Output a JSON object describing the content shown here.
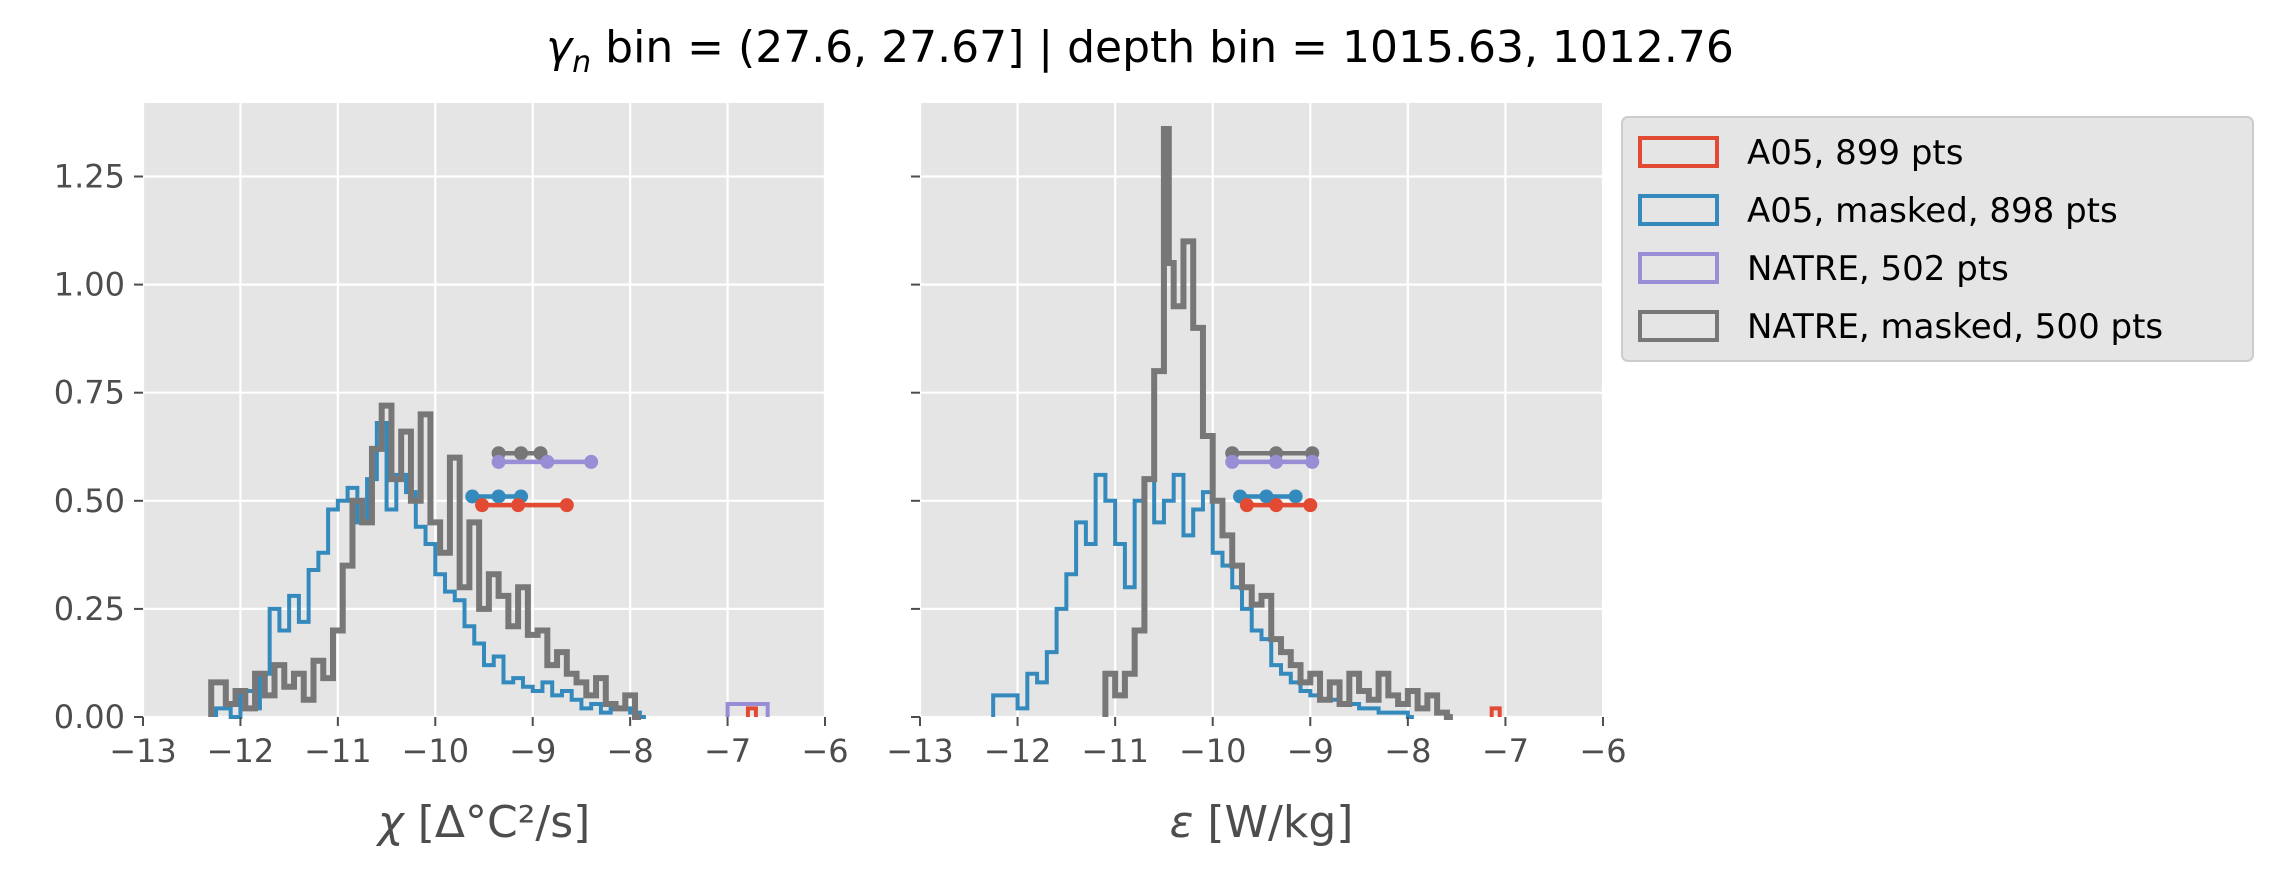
{
  "chart_data": {
    "type": "histogram",
    "title": "γₙ bin = (27.6, 27.67] | depth bin = 1015.63, 1012.76",
    "title_parts": {
      "symbol": "γ",
      "subscript": "n",
      "rest": " bin = (27.6, 27.67] | depth bin = 1015.63, 1012.76"
    },
    "grid": true,
    "legend_placement": "outside right, top",
    "legend": [
      {
        "label": "A05, 899 pts",
        "color": "#E24A33"
      },
      {
        "label": "A05, masked,  898 pts",
        "color": "#348ABD"
      },
      {
        "label": "NATRE, 502 pts",
        "color": "#988ED5"
      },
      {
        "label": "NATRE, masked,  500 pts",
        "color": "#777777"
      }
    ],
    "ylim": [
      0,
      1.42
    ],
    "yticks": [
      "0.00",
      "0.25",
      "0.50",
      "0.75",
      "1.00",
      "1.25"
    ],
    "panels": [
      {
        "xlabel_symbol": "χ",
        "xlabel_rest": " [Δ°C²/s]",
        "xlim": [
          -13,
          -6
        ],
        "xticks": [
          "−13",
          "−12",
          "−11",
          "−10",
          "−9",
          "−8",
          "−7",
          "−6"
        ],
        "series": [
          {
            "color": "#988ED5",
            "steps": [
              [
                -7.0,
                0.03
              ],
              [
                -6.65,
                0.03
              ]
            ]
          },
          {
            "color": "#E24A33",
            "steps": [
              [
                -6.75,
                0.02
              ]
            ]
          },
          {
            "color": "#348ABD",
            "steps": [
              [
                -12.25,
                0.02
              ],
              [
                -12.1,
                0.0
              ],
              [
                -12.0,
                0.06
              ],
              [
                -11.85,
                0.02
              ],
              [
                -11.8,
                0.1
              ],
              [
                -11.7,
                0.25
              ],
              [
                -11.6,
                0.2
              ],
              [
                -11.5,
                0.28
              ],
              [
                -11.4,
                0.22
              ],
              [
                -11.3,
                0.34
              ],
              [
                -11.2,
                0.38
              ],
              [
                -11.1,
                0.48
              ],
              [
                -11.0,
                0.5
              ],
              [
                -10.9,
                0.53
              ],
              [
                -10.8,
                0.45
              ],
              [
                -10.7,
                0.55
              ],
              [
                -10.6,
                0.68
              ],
              [
                -10.5,
                0.48
              ],
              [
                -10.4,
                0.56
              ],
              [
                -10.3,
                0.52
              ],
              [
                -10.2,
                0.44
              ],
              [
                -10.1,
                0.4
              ],
              [
                -10.0,
                0.33
              ],
              [
                -9.9,
                0.29
              ],
              [
                -9.8,
                0.27
              ],
              [
                -9.7,
                0.21
              ],
              [
                -9.6,
                0.17
              ],
              [
                -9.5,
                0.12
              ],
              [
                -9.4,
                0.14
              ],
              [
                -9.3,
                0.08
              ],
              [
                -9.2,
                0.09
              ],
              [
                -9.1,
                0.07
              ],
              [
                -9.0,
                0.06
              ],
              [
                -8.9,
                0.08
              ],
              [
                -8.8,
                0.05
              ],
              [
                -8.7,
                0.06
              ],
              [
                -8.6,
                0.04
              ],
              [
                -8.5,
                0.02
              ],
              [
                -8.4,
                0.03
              ],
              [
                -8.3,
                0.01
              ],
              [
                -8.2,
                0.02
              ],
              [
                -8.0,
                0.01
              ],
              [
                -7.9,
                0.0
              ]
            ]
          },
          {
            "color": "#777777",
            "steps": [
              [
                -12.3,
                0.08
              ],
              [
                -12.15,
                0.03
              ],
              [
                -12.05,
                0.06
              ],
              [
                -11.95,
                0.02
              ],
              [
                -11.85,
                0.1
              ],
              [
                -11.75,
                0.05
              ],
              [
                -11.65,
                0.12
              ],
              [
                -11.55,
                0.07
              ],
              [
                -11.45,
                0.1
              ],
              [
                -11.35,
                0.04
              ],
              [
                -11.25,
                0.13
              ],
              [
                -11.15,
                0.09
              ],
              [
                -11.05,
                0.2
              ],
              [
                -10.95,
                0.35
              ],
              [
                -10.85,
                0.5
              ],
              [
                -10.75,
                0.45
              ],
              [
                -10.65,
                0.62
              ],
              [
                -10.55,
                0.72
              ],
              [
                -10.45,
                0.55
              ],
              [
                -10.35,
                0.66
              ],
              [
                -10.25,
                0.5
              ],
              [
                -10.15,
                0.7
              ],
              [
                -10.05,
                0.45
              ],
              [
                -9.95,
                0.38
              ],
              [
                -9.85,
                0.6
              ],
              [
                -9.75,
                0.3
              ],
              [
                -9.65,
                0.45
              ],
              [
                -9.55,
                0.25
              ],
              [
                -9.45,
                0.33
              ],
              [
                -9.35,
                0.28
              ],
              [
                -9.25,
                0.21
              ],
              [
                -9.15,
                0.3
              ],
              [
                -9.05,
                0.19
              ],
              [
                -8.95,
                0.2
              ],
              [
                -8.85,
                0.12
              ],
              [
                -8.75,
                0.15
              ],
              [
                -8.65,
                0.1
              ],
              [
                -8.55,
                0.08
              ],
              [
                -8.45,
                0.05
              ],
              [
                -8.35,
                0.09
              ],
              [
                -8.25,
                0.03
              ],
              [
                -8.15,
                0.02
              ],
              [
                -8.05,
                0.05
              ],
              [
                -7.95,
                0.0
              ]
            ]
          }
        ],
        "intervals": [
          {
            "color": "#777777",
            "y": 0.61,
            "points": [
              -9.35,
              -9.12,
              -8.92
            ]
          },
          {
            "color": "#988ED5",
            "y": 0.59,
            "points": [
              -9.35,
              -8.85,
              -8.4
            ]
          },
          {
            "color": "#348ABD",
            "y": 0.51,
            "points": [
              -9.62,
              -9.35,
              -9.12
            ]
          },
          {
            "color": "#E24A33",
            "y": 0.49,
            "points": [
              -9.52,
              -9.15,
              -8.65
            ]
          }
        ]
      },
      {
        "xlabel_symbol": "ε",
        "xlabel_rest": " [W/kg]",
        "xlim": [
          -13,
          -6
        ],
        "xticks": [
          "−13",
          "−12",
          "−11",
          "−10",
          "−9",
          "−8",
          "−7",
          "−6"
        ],
        "series": [
          {
            "color": "#E24A33",
            "steps": [
              [
                -7.1,
                0.02
              ]
            ]
          },
          {
            "color": "#348ABD",
            "steps": [
              [
                -12.25,
                0.05
              ],
              [
                -12.0,
                0.02
              ],
              [
                -11.9,
                0.1
              ],
              [
                -11.8,
                0.08
              ],
              [
                -11.7,
                0.15
              ],
              [
                -11.6,
                0.25
              ],
              [
                -11.5,
                0.33
              ],
              [
                -11.4,
                0.45
              ],
              [
                -11.3,
                0.4
              ],
              [
                -11.2,
                0.56
              ],
              [
                -11.1,
                0.5
              ],
              [
                -11.0,
                0.4
              ],
              [
                -10.9,
                0.3
              ],
              [
                -10.8,
                0.5
              ],
              [
                -10.7,
                0.55
              ],
              [
                -10.6,
                0.45
              ],
              [
                -10.5,
                0.5
              ],
              [
                -10.4,
                0.56
              ],
              [
                -10.3,
                0.42
              ],
              [
                -10.2,
                0.48
              ],
              [
                -10.1,
                0.52
              ],
              [
                -10.0,
                0.38
              ],
              [
                -9.9,
                0.35
              ],
              [
                -9.8,
                0.3
              ],
              [
                -9.7,
                0.25
              ],
              [
                -9.6,
                0.2
              ],
              [
                -9.5,
                0.18
              ],
              [
                -9.4,
                0.12
              ],
              [
                -9.3,
                0.1
              ],
              [
                -9.2,
                0.08
              ],
              [
                -9.1,
                0.06
              ],
              [
                -9.0,
                0.05
              ],
              [
                -8.9,
                0.04
              ],
              [
                -8.7,
                0.03
              ],
              [
                -8.5,
                0.02
              ],
              [
                -8.3,
                0.01
              ],
              [
                -8.0,
                0.0
              ]
            ]
          },
          {
            "color": "#777777",
            "steps": [
              [
                -11.1,
                0.1
              ],
              [
                -11.0,
                0.05
              ],
              [
                -10.9,
                0.1
              ],
              [
                -10.8,
                0.2
              ],
              [
                -10.7,
                0.55
              ],
              [
                -10.6,
                0.8
              ],
              [
                -10.5,
                1.36
              ],
              [
                -10.45,
                1.05
              ],
              [
                -10.4,
                0.95
              ],
              [
                -10.3,
                1.1
              ],
              [
                -10.2,
                0.9
              ],
              [
                -10.1,
                0.65
              ],
              [
                -10.0,
                0.5
              ],
              [
                -9.9,
                0.42
              ],
              [
                -9.8,
                0.35
              ],
              [
                -9.7,
                0.3
              ],
              [
                -9.6,
                0.26
              ],
              [
                -9.5,
                0.28
              ],
              [
                -9.4,
                0.18
              ],
              [
                -9.3,
                0.15
              ],
              [
                -9.2,
                0.12
              ],
              [
                -9.1,
                0.08
              ],
              [
                -9.0,
                0.1
              ],
              [
                -8.9,
                0.04
              ],
              [
                -8.8,
                0.08
              ],
              [
                -8.7,
                0.03
              ],
              [
                -8.6,
                0.1
              ],
              [
                -8.5,
                0.06
              ],
              [
                -8.4,
                0.04
              ],
              [
                -8.3,
                0.1
              ],
              [
                -8.2,
                0.05
              ],
              [
                -8.1,
                0.03
              ],
              [
                -8.0,
                0.06
              ],
              [
                -7.9,
                0.02
              ],
              [
                -7.8,
                0.05
              ],
              [
                -7.7,
                0.01
              ],
              [
                -7.6,
                0.0
              ]
            ]
          }
        ],
        "intervals": [
          {
            "color": "#777777",
            "y": 0.61,
            "points": [
              -9.8,
              -9.35,
              -8.98
            ]
          },
          {
            "color": "#988ED5",
            "y": 0.59,
            "points": [
              -9.8,
              -9.35,
              -8.98
            ]
          },
          {
            "color": "#348ABD",
            "y": 0.51,
            "points": [
              -9.72,
              -9.45,
              -9.15
            ]
          },
          {
            "color": "#E24A33",
            "y": 0.49,
            "points": [
              -9.65,
              -9.35,
              -9.0
            ]
          }
        ]
      }
    ]
  }
}
